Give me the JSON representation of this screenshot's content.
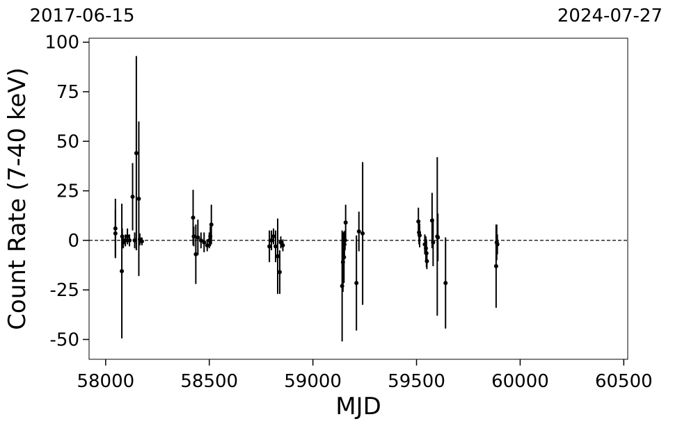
{
  "chart_data": {
    "type": "scatter",
    "color": "#000000",
    "xlabel": "MJD",
    "ylabel": "Count Rate (7-40 keV)",
    "xlim": [
      57920,
      60519
    ],
    "ylim": [
      -60,
      102
    ],
    "xticks": [
      58000,
      58500,
      59000,
      59500,
      60000,
      60500
    ],
    "yticks": [
      -50,
      -25,
      0,
      25,
      50,
      75,
      100
    ],
    "x2ticks": [
      {
        "value": 57920,
        "label": "2017-06-15"
      },
      {
        "value": 60519,
        "label": "2024-07-27"
      }
    ],
    "hline": 0,
    "x": [
      58047,
      58047,
      58078,
      58080,
      58085,
      58095,
      58105,
      58115,
      58130,
      58140,
      58148,
      58160,
      58165,
      58175,
      58422,
      58425,
      58435,
      58445,
      58460,
      58475,
      58490,
      58500,
      58505,
      58510,
      58790,
      58800,
      58810,
      58820,
      58830,
      58840,
      58845,
      58855,
      59141,
      59145,
      59150,
      59152,
      59155,
      59158,
      59210,
      59222,
      59240,
      59509,
      59512,
      59515,
      59540,
      59545,
      59548,
      59550,
      59575,
      59580,
      59600,
      59603,
      59640,
      59884,
      59887,
      59890
    ],
    "values": [
      6,
      3.5,
      -15.5,
      2,
      -1,
      0,
      2,
      0,
      22,
      0,
      44,
      21,
      0.5,
      -0.5,
      11.5,
      2,
      -7,
      1.5,
      0,
      -1,
      -2.5,
      0,
      2,
      8,
      -3,
      0,
      2,
      -3,
      -8,
      -16,
      -1,
      -2.5,
      -23,
      -11,
      -8.5,
      -2,
      0,
      9,
      -21.5,
      4.5,
      3.5,
      9.5,
      4,
      2.5,
      -2,
      -4,
      -6.5,
      -10.5,
      10,
      -1,
      2,
      1.5,
      -21.5,
      -13,
      -1,
      -2
    ],
    "errors": [
      15,
      12,
      34,
      4,
      3,
      3,
      4,
      3,
      17,
      4,
      49,
      39,
      3,
      2,
      14,
      5,
      15,
      9,
      4,
      5,
      3,
      4,
      5,
      10,
      8,
      5,
      4,
      8,
      19,
      11,
      3,
      3,
      28,
      15,
      13,
      6,
      5,
      9,
      24,
      10,
      36,
      7,
      6,
      6,
      5,
      6,
      7,
      4,
      14,
      12,
      40,
      12,
      23,
      21,
      9,
      5
    ]
  }
}
